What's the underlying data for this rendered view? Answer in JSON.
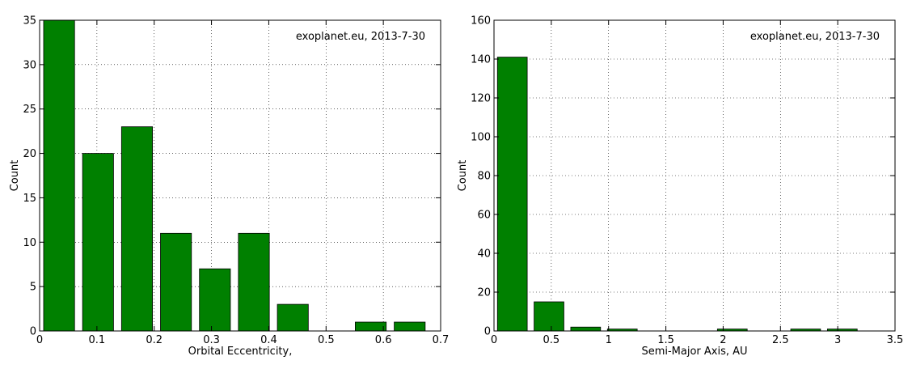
{
  "chart_data": [
    {
      "type": "bar",
      "title": "",
      "xlabel": "Orbital Eccentricity,",
      "ylabel": "Count",
      "annotation": "exoplanet.eu, 2013-7-30",
      "xlim": [
        0,
        0.7
      ],
      "ylim": [
        0,
        35
      ],
      "xticks": [
        0,
        0.1,
        0.2,
        0.3,
        0.4,
        0.5,
        0.6,
        0.7
      ],
      "yticks": [
        0,
        5,
        10,
        15,
        20,
        25,
        30,
        35
      ],
      "grid": true,
      "bar_color": "#008000",
      "bars": [
        {
          "x0": 0.007,
          "x1": 0.061,
          "value": 35
        },
        {
          "x0": 0.075,
          "x1": 0.129,
          "value": 20
        },
        {
          "x0": 0.143,
          "x1": 0.197,
          "value": 23
        },
        {
          "x0": 0.211,
          "x1": 0.265,
          "value": 11
        },
        {
          "x0": 0.279,
          "x1": 0.333,
          "value": 7
        },
        {
          "x0": 0.347,
          "x1": 0.401,
          "value": 11
        },
        {
          "x0": 0.415,
          "x1": 0.469,
          "value": 3
        },
        {
          "x0": 0.483,
          "x1": 0.537,
          "value": 0
        },
        {
          "x0": 0.551,
          "x1": 0.605,
          "value": 1
        },
        {
          "x0": 0.619,
          "x1": 0.673,
          "value": 1
        }
      ]
    },
    {
      "type": "bar",
      "title": "",
      "xlabel": "Semi-Major Axis, AU",
      "ylabel": "Count",
      "annotation": "exoplanet.eu, 2013-7-30",
      "xlim": [
        0,
        3.5
      ],
      "ylim": [
        0,
        160
      ],
      "xticks": [
        0,
        0.5,
        1,
        1.5,
        2,
        2.5,
        3,
        3.5
      ],
      "yticks": [
        0,
        20,
        40,
        60,
        80,
        100,
        120,
        140,
        160
      ],
      "grid": true,
      "bar_color": "#008000",
      "bars": [
        {
          "x0": 0.03,
          "x1": 0.29,
          "value": 141
        },
        {
          "x0": 0.35,
          "x1": 0.61,
          "value": 15
        },
        {
          "x0": 0.67,
          "x1": 0.93,
          "value": 2
        },
        {
          "x0": 0.99,
          "x1": 1.25,
          "value": 1
        },
        {
          "x0": 1.31,
          "x1": 1.57,
          "value": 0
        },
        {
          "x0": 1.63,
          "x1": 1.89,
          "value": 0
        },
        {
          "x0": 1.95,
          "x1": 2.21,
          "value": 1
        },
        {
          "x0": 2.27,
          "x1": 2.53,
          "value": 0
        },
        {
          "x0": 2.59,
          "x1": 2.85,
          "value": 1
        },
        {
          "x0": 2.91,
          "x1": 3.17,
          "value": 1
        }
      ]
    }
  ]
}
